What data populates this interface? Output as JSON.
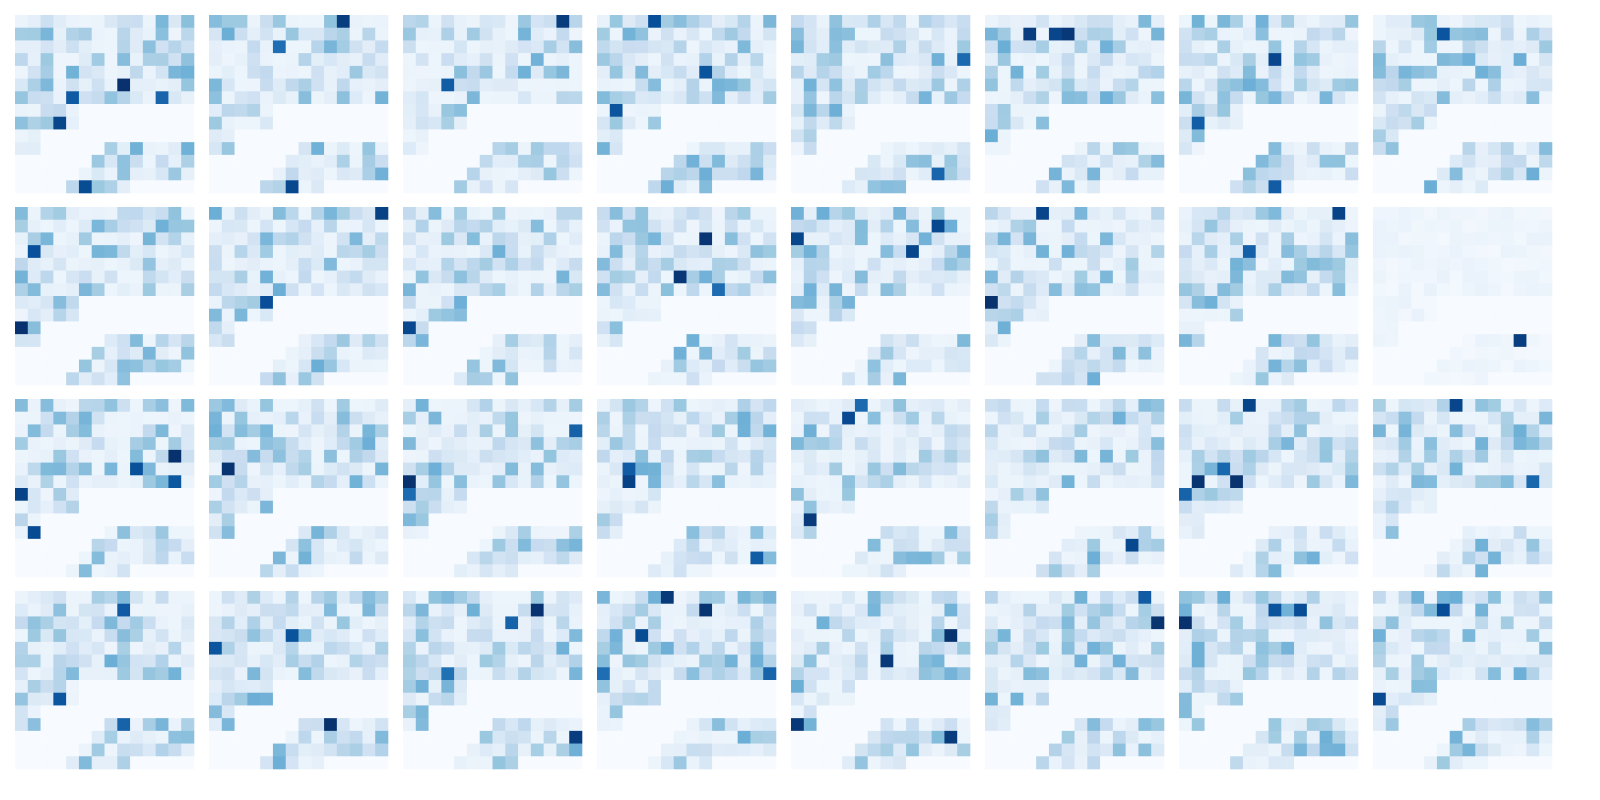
{
  "chart_data": {
    "type": "heatmap",
    "layout": {
      "rows": 4,
      "cols": 8
    },
    "cell_grid": [
      14,
      14
    ],
    "colormap": {
      "name": "Blues",
      "stops": [
        "#f7fbff",
        "#deebf7",
        "#c6dbef",
        "#9ecae1",
        "#6baed6",
        "#4292c6",
        "#2171b5",
        "#08519c",
        "#08306b"
      ]
    },
    "value_range": [
      0,
      1
    ],
    "title": "",
    "xlabel": "",
    "ylabel": "",
    "grid": false,
    "legend": "none",
    "axes_visible": false,
    "panel_count": 32,
    "active_region_rows": [
      [
        0,
        13
      ],
      [
        0,
        13
      ],
      [
        0,
        13
      ],
      [
        0,
        13
      ],
      [
        0,
        13
      ],
      [
        0,
        13
      ],
      [
        0,
        13
      ],
      [
        0,
        4
      ],
      [
        0,
        4
      ],
      [
        0,
        1
      ],
      [
        8,
        13
      ],
      [
        7,
        13
      ],
      [
        6,
        13
      ],
      [
        5,
        8
      ]
    ],
    "notable_panels": {
      "panel_16_overall_intensity": 0.06,
      "default_overall_intensity": 0.35
    }
  }
}
